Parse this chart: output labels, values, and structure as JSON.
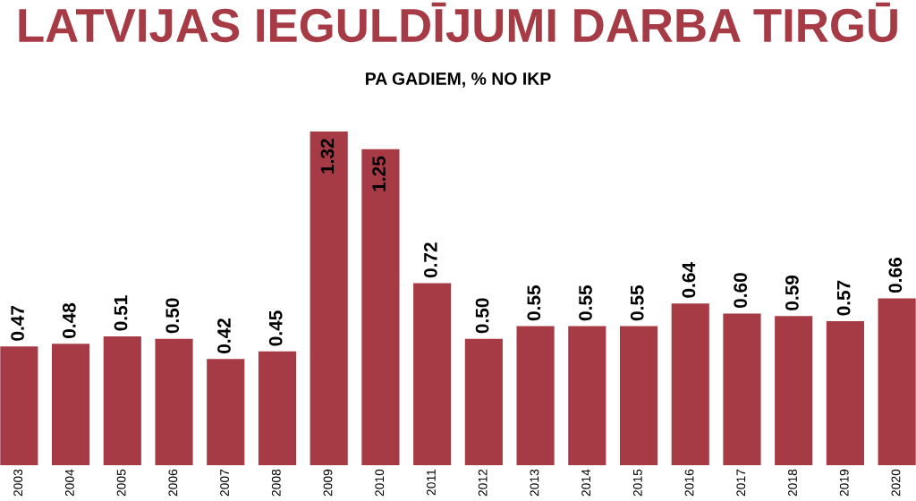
{
  "chart_data": {
    "type": "bar",
    "title": "LATVIJAS IEGULDĪJUMI DARBA TIRGŪ",
    "subtitle": "PA GADIEM, % NO IKP",
    "categories": [
      "2003",
      "2004",
      "2005",
      "2006",
      "2007",
      "2008",
      "2009",
      "2010",
      "2011",
      "2012",
      "2013",
      "2014",
      "2015",
      "2016",
      "2017",
      "2018",
      "2019",
      "2020"
    ],
    "values": [
      0.47,
      0.48,
      0.51,
      0.5,
      0.42,
      0.45,
      1.32,
      1.25,
      0.72,
      0.5,
      0.55,
      0.55,
      0.55,
      0.64,
      0.6,
      0.59,
      0.57,
      0.66
    ],
    "value_labels": [
      "0.47",
      "0.48",
      "0.51",
      "0.50",
      "0.42",
      "0.45",
      "1.32",
      "1.25",
      "0.72",
      "0.50",
      "0.55",
      "0.55",
      "0.55",
      "0.64",
      "0.60",
      "0.59",
      "0.57",
      "0.66"
    ],
    "color": "#a63a45",
    "grid": false,
    "legend": false
  }
}
